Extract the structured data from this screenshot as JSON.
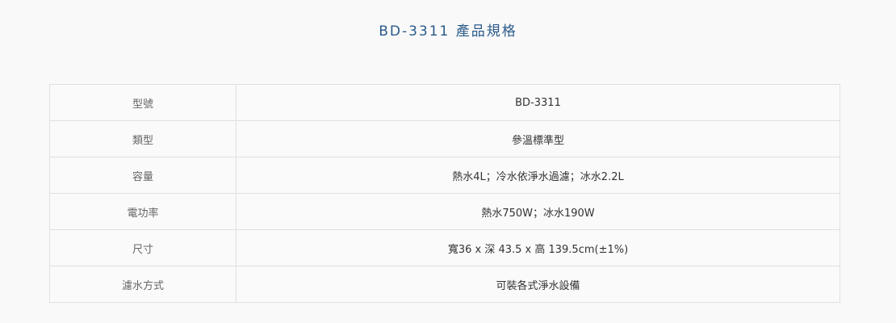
{
  "title": "BD-3311 產品規格",
  "specs": [
    {
      "label": "型號",
      "value": "BD-3311"
    },
    {
      "label": "類型",
      "value": "參溫標準型"
    },
    {
      "label": "容量",
      "value": "熱水4L；冷水依淨水過濾；冰水2.2L"
    },
    {
      "label": "電功率",
      "value": "熱水750W；冰水190W"
    },
    {
      "label": "尺寸",
      "value": "寬36 x 深 43.5 x 高 139.5cm(±1%)"
    },
    {
      "label": "濾水方式",
      "value": "可裝各式淨水設備"
    }
  ]
}
